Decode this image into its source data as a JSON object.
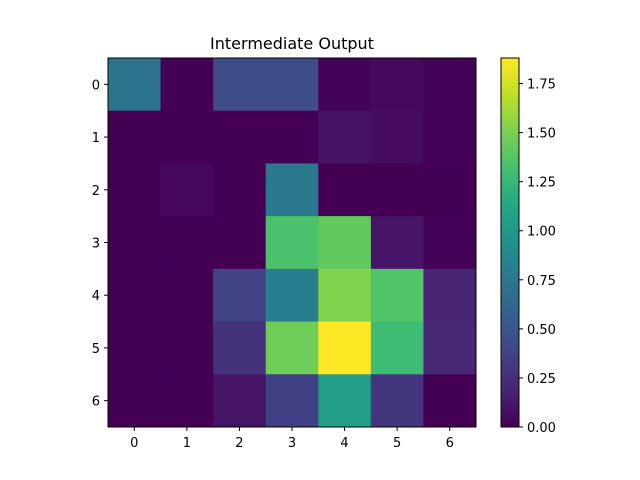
{
  "chart_data": {
    "type": "heatmap",
    "title": "Intermediate Output",
    "xlabel": "",
    "ylabel": "",
    "x_categories": [
      "0",
      "1",
      "2",
      "3",
      "4",
      "5",
      "6"
    ],
    "y_categories": [
      "0",
      "1",
      "2",
      "3",
      "4",
      "5",
      "6"
    ],
    "values": [
      [
        0.72,
        0.0,
        0.43,
        0.43,
        0.01,
        0.05,
        0.01
      ],
      [
        0.0,
        0.0,
        0.0,
        0.0,
        0.09,
        0.06,
        0.01
      ],
      [
        0.0,
        0.04,
        0.0,
        0.75,
        0.0,
        0.0,
        0.0
      ],
      [
        0.0,
        0.0,
        0.0,
        1.34,
        1.42,
        0.11,
        0.01
      ],
      [
        0.0,
        0.0,
        0.37,
        0.8,
        1.52,
        1.36,
        0.19
      ],
      [
        0.0,
        0.0,
        0.27,
        1.46,
        1.88,
        1.29,
        0.22
      ],
      [
        0.0,
        0.0,
        0.1,
        0.35,
        1.05,
        0.29,
        0.0
      ]
    ],
    "colorbar": {
      "colormap": "viridis",
      "range": [
        0.0,
        1.88
      ],
      "ticks": [
        0.0,
        0.25,
        0.5,
        0.75,
        1.0,
        1.25,
        1.5,
        1.75
      ],
      "tick_labels": [
        "0.00",
        "0.25",
        "0.50",
        "0.75",
        "1.00",
        "1.25",
        "1.50",
        "1.75"
      ]
    },
    "grid": false
  }
}
